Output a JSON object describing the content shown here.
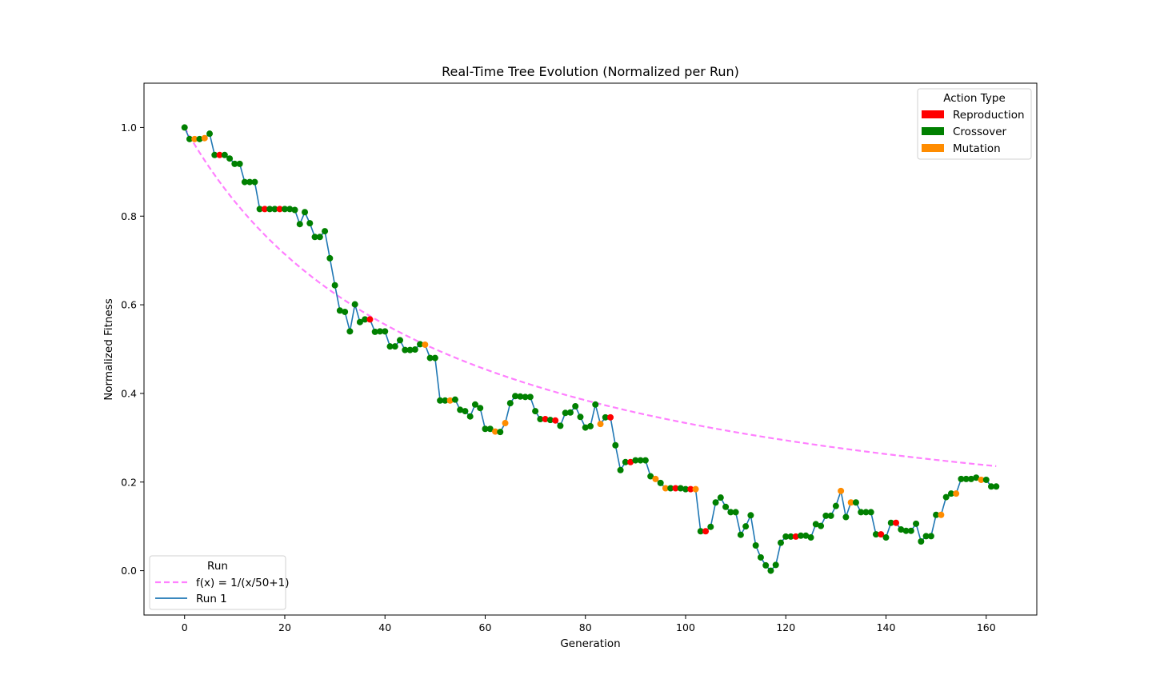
{
  "chart_data": {
    "type": "line",
    "title": "Real-Time Tree Evolution (Normalized per Run)",
    "xlabel": "Generation",
    "ylabel": "Normalized Fitness",
    "xlim": [
      -8.1,
      170.1
    ],
    "ylim": [
      -0.1,
      1.1
    ],
    "xticks": [
      0,
      20,
      40,
      60,
      80,
      100,
      120,
      140,
      160
    ],
    "yticks": [
      0.0,
      0.2,
      0.4,
      0.6,
      0.8,
      1.0
    ],
    "xtick_labels": [
      "0",
      "20",
      "40",
      "60",
      "80",
      "100",
      "120",
      "140",
      "160"
    ],
    "ytick_labels": [
      "0.0",
      "0.2",
      "0.4",
      "0.6",
      "0.8",
      "1.0"
    ],
    "grid": false,
    "colors": {
      "reference": "#ff80ff",
      "run": "#1f77b4",
      "Reproduction": "#ff0000",
      "Crossover": "#008000",
      "Mutation": "#ff8c00"
    },
    "action_legend": {
      "title": "Action Type",
      "placement": "top-right",
      "entries": [
        "Reproduction",
        "Crossover",
        "Mutation"
      ]
    },
    "run_legend": {
      "title": "Run",
      "placement": "bottom-left",
      "entries": [
        "f(x) = 1/(x/50+1)",
        "Run 1"
      ]
    },
    "series": [
      {
        "name": "f(x) = 1/(x/50+1)",
        "kind": "reference",
        "x_range": [
          0,
          162
        ]
      },
      {
        "name": "Run 1",
        "kind": "run",
        "points": [
          [
            0,
            1.0,
            "C"
          ],
          [
            1,
            0.974,
            "C"
          ],
          [
            2,
            0.974,
            "M"
          ],
          [
            3,
            0.974,
            "C"
          ],
          [
            4,
            0.976,
            "M"
          ],
          [
            5,
            0.986,
            "C"
          ],
          [
            6,
            0.938,
            "C"
          ],
          [
            7,
            0.938,
            "R"
          ],
          [
            8,
            0.938,
            "C"
          ],
          [
            9,
            0.93,
            "C"
          ],
          [
            10,
            0.918,
            "C"
          ],
          [
            11,
            0.918,
            "C"
          ],
          [
            12,
            0.877,
            "C"
          ],
          [
            13,
            0.877,
            "C"
          ],
          [
            14,
            0.877,
            "C"
          ],
          [
            15,
            0.816,
            "C"
          ],
          [
            16,
            0.816,
            "R"
          ],
          [
            17,
            0.816,
            "C"
          ],
          [
            18,
            0.816,
            "C"
          ],
          [
            19,
            0.816,
            "R"
          ],
          [
            20,
            0.816,
            "C"
          ],
          [
            21,
            0.816,
            "C"
          ],
          [
            22,
            0.814,
            "C"
          ],
          [
            23,
            0.782,
            "C"
          ],
          [
            24,
            0.809,
            "C"
          ],
          [
            25,
            0.784,
            "C"
          ],
          [
            26,
            0.753,
            "C"
          ],
          [
            27,
            0.753,
            "C"
          ],
          [
            28,
            0.766,
            "C"
          ],
          [
            29,
            0.705,
            "C"
          ],
          [
            30,
            0.644,
            "C"
          ],
          [
            31,
            0.587,
            "C"
          ],
          [
            32,
            0.584,
            "C"
          ],
          [
            33,
            0.54,
            "C"
          ],
          [
            34,
            0.601,
            "C"
          ],
          [
            35,
            0.561,
            "C"
          ],
          [
            36,
            0.567,
            "C"
          ],
          [
            37,
            0.567,
            "R"
          ],
          [
            38,
            0.539,
            "C"
          ],
          [
            39,
            0.54,
            "C"
          ],
          [
            40,
            0.54,
            "C"
          ],
          [
            41,
            0.506,
            "C"
          ],
          [
            42,
            0.506,
            "C"
          ],
          [
            43,
            0.52,
            "C"
          ],
          [
            44,
            0.498,
            "C"
          ],
          [
            45,
            0.498,
            "C"
          ],
          [
            46,
            0.499,
            "C"
          ],
          [
            47,
            0.511,
            "C"
          ],
          [
            48,
            0.51,
            "M"
          ],
          [
            49,
            0.48,
            "C"
          ],
          [
            50,
            0.48,
            "C"
          ],
          [
            51,
            0.384,
            "C"
          ],
          [
            52,
            0.384,
            "C"
          ],
          [
            53,
            0.384,
            "M"
          ],
          [
            54,
            0.386,
            "C"
          ],
          [
            55,
            0.363,
            "C"
          ],
          [
            56,
            0.36,
            "C"
          ],
          [
            57,
            0.348,
            "C"
          ],
          [
            58,
            0.375,
            "C"
          ],
          [
            59,
            0.367,
            "C"
          ],
          [
            60,
            0.32,
            "C"
          ],
          [
            61,
            0.32,
            "C"
          ],
          [
            62,
            0.314,
            "M"
          ],
          [
            63,
            0.313,
            "C"
          ],
          [
            64,
            0.333,
            "M"
          ],
          [
            65,
            0.378,
            "C"
          ],
          [
            66,
            0.394,
            "C"
          ],
          [
            67,
            0.393,
            "C"
          ],
          [
            68,
            0.392,
            "C"
          ],
          [
            69,
            0.392,
            "C"
          ],
          [
            70,
            0.36,
            "C"
          ],
          [
            71,
            0.342,
            "C"
          ],
          [
            72,
            0.342,
            "R"
          ],
          [
            73,
            0.34,
            "C"
          ],
          [
            74,
            0.339,
            "R"
          ],
          [
            75,
            0.327,
            "C"
          ],
          [
            76,
            0.356,
            "C"
          ],
          [
            77,
            0.357,
            "C"
          ],
          [
            78,
            0.371,
            "C"
          ],
          [
            79,
            0.347,
            "C"
          ],
          [
            80,
            0.323,
            "C"
          ],
          [
            81,
            0.326,
            "C"
          ],
          [
            82,
            0.375,
            "C"
          ],
          [
            83,
            0.331,
            "M"
          ],
          [
            84,
            0.346,
            "C"
          ],
          [
            85,
            0.346,
            "R"
          ],
          [
            86,
            0.283,
            "C"
          ],
          [
            87,
            0.227,
            "C"
          ],
          [
            88,
            0.245,
            "C"
          ],
          [
            89,
            0.245,
            "R"
          ],
          [
            90,
            0.249,
            "C"
          ],
          [
            91,
            0.249,
            "C"
          ],
          [
            92,
            0.249,
            "C"
          ],
          [
            93,
            0.213,
            "C"
          ],
          [
            94,
            0.207,
            "M"
          ],
          [
            95,
            0.198,
            "C"
          ],
          [
            96,
            0.186,
            "M"
          ],
          [
            97,
            0.186,
            "C"
          ],
          [
            98,
            0.186,
            "R"
          ],
          [
            99,
            0.186,
            "C"
          ],
          [
            100,
            0.184,
            "C"
          ],
          [
            101,
            0.184,
            "R"
          ],
          [
            102,
            0.184,
            "M"
          ],
          [
            103,
            0.089,
            "C"
          ],
          [
            104,
            0.089,
            "R"
          ],
          [
            105,
            0.099,
            "C"
          ],
          [
            106,
            0.154,
            "C"
          ],
          [
            107,
            0.165,
            "C"
          ],
          [
            108,
            0.144,
            "C"
          ],
          [
            109,
            0.132,
            "C"
          ],
          [
            110,
            0.132,
            "C"
          ],
          [
            111,
            0.081,
            "C"
          ],
          [
            112,
            0.1,
            "C"
          ],
          [
            113,
            0.125,
            "C"
          ],
          [
            114,
            0.057,
            "C"
          ],
          [
            115,
            0.03,
            "C"
          ],
          [
            116,
            0.012,
            "C"
          ],
          [
            117,
            0.0,
            "C"
          ],
          [
            118,
            0.013,
            "C"
          ],
          [
            119,
            0.063,
            "C"
          ],
          [
            120,
            0.077,
            "C"
          ],
          [
            121,
            0.077,
            "C"
          ],
          [
            122,
            0.077,
            "R"
          ],
          [
            123,
            0.079,
            "C"
          ],
          [
            124,
            0.079,
            "C"
          ],
          [
            125,
            0.075,
            "C"
          ],
          [
            126,
            0.105,
            "C"
          ],
          [
            127,
            0.101,
            "C"
          ],
          [
            128,
            0.124,
            "C"
          ],
          [
            129,
            0.124,
            "C"
          ],
          [
            130,
            0.146,
            "C"
          ],
          [
            131,
            0.18,
            "M"
          ],
          [
            132,
            0.121,
            "C"
          ],
          [
            133,
            0.154,
            "M"
          ],
          [
            134,
            0.154,
            "C"
          ],
          [
            135,
            0.132,
            "C"
          ],
          [
            136,
            0.132,
            "C"
          ],
          [
            137,
            0.132,
            "C"
          ],
          [
            138,
            0.082,
            "C"
          ],
          [
            139,
            0.082,
            "R"
          ],
          [
            140,
            0.075,
            "C"
          ],
          [
            141,
            0.108,
            "C"
          ],
          [
            142,
            0.108,
            "R"
          ],
          [
            143,
            0.093,
            "C"
          ],
          [
            144,
            0.09,
            "C"
          ],
          [
            145,
            0.09,
            "C"
          ],
          [
            146,
            0.106,
            "C"
          ],
          [
            147,
            0.066,
            "C"
          ],
          [
            148,
            0.078,
            "C"
          ],
          [
            149,
            0.078,
            "C"
          ],
          [
            150,
            0.126,
            "C"
          ],
          [
            151,
            0.126,
            "M"
          ],
          [
            152,
            0.166,
            "C"
          ],
          [
            153,
            0.174,
            "C"
          ],
          [
            154,
            0.174,
            "M"
          ],
          [
            155,
            0.207,
            "C"
          ],
          [
            156,
            0.207,
            "C"
          ],
          [
            157,
            0.207,
            "C"
          ],
          [
            158,
            0.21,
            "C"
          ],
          [
            159,
            0.205,
            "M"
          ],
          [
            160,
            0.205,
            "C"
          ],
          [
            161,
            0.19,
            "C"
          ],
          [
            162,
            0.19,
            "C"
          ]
        ]
      }
    ]
  }
}
